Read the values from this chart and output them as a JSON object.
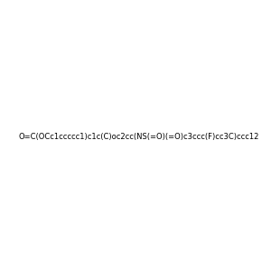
{
  "smiles": "O=C(OCc1ccccc1)c1c(C)oc2cc(NS(=O)(=O)c3ccc(F)cc3C)ccc12",
  "image_size": 300,
  "background_color": "#f0f0f0"
}
